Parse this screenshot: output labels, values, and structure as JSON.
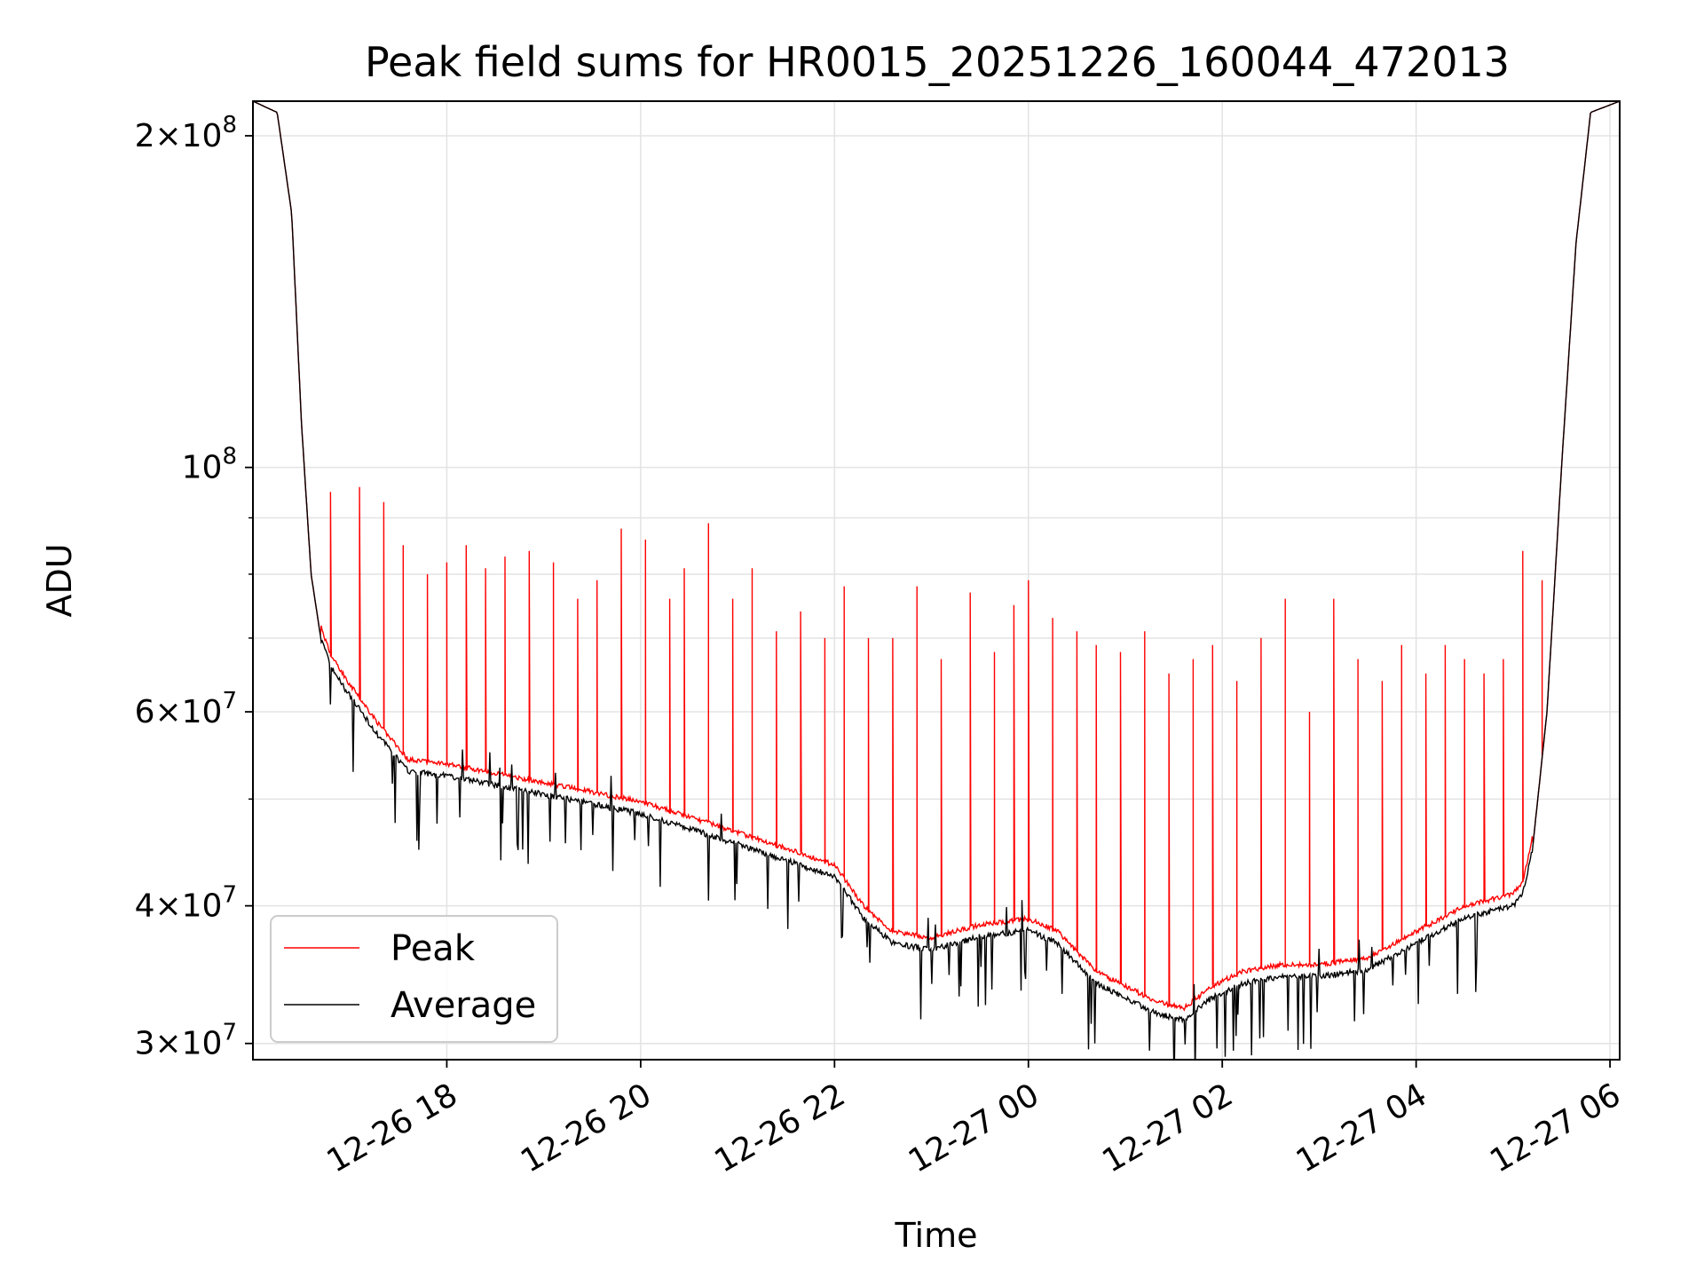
{
  "chart_data": {
    "type": "line",
    "title": "Peak field sums for HR0015_20251226_160044_472013",
    "xlabel": "Time",
    "ylabel": "ADU",
    "yscale": "log",
    "ylim": [
      29000000,
      215000000
    ],
    "xlim_hours": [
      16.0,
      30.1
    ],
    "x_ticks": [
      {
        "hour": 18,
        "label": "12-26 18"
      },
      {
        "hour": 20,
        "label": "12-26 20"
      },
      {
        "hour": 22,
        "label": "12-26 22"
      },
      {
        "hour": 24,
        "label": "12-27 00"
      },
      {
        "hour": 26,
        "label": "12-27 02"
      },
      {
        "hour": 28,
        "label": "12-27 04"
      },
      {
        "hour": 30,
        "label": "12-27 06"
      }
    ],
    "y_major_ticks": [
      {
        "value": 30000000,
        "mant": "3",
        "exp": "7"
      },
      {
        "value": 40000000,
        "mant": "4",
        "exp": "7"
      },
      {
        "value": 60000000,
        "mant": "6",
        "exp": "7"
      },
      {
        "value": 100000000,
        "mant": "",
        "exp": "8"
      },
      {
        "value": 200000000,
        "mant": "2",
        "exp": "8"
      }
    ],
    "y_minor_ticks": [
      50000000,
      70000000,
      80000000,
      90000000
    ],
    "grid": true,
    "legend": {
      "position": "lower-left",
      "entries": [
        {
          "name": "Peak",
          "color": "#ff0000"
        },
        {
          "name": "Average",
          "color": "#000000"
        }
      ]
    },
    "series": [
      {
        "name": "Average",
        "color": "#000000",
        "x_hours": [
          16.0,
          16.25,
          16.4,
          16.5,
          16.6,
          16.7,
          16.8,
          17.0,
          17.3,
          17.6,
          18.0,
          18.5,
          19.0,
          19.5,
          20.0,
          20.5,
          21.0,
          21.5,
          22.0,
          22.3,
          22.6,
          23.0,
          23.5,
          24.0,
          24.3,
          24.7,
          25.0,
          25.3,
          25.6,
          25.9,
          26.2,
          26.6,
          27.0,
          27.5,
          28.0,
          28.5,
          29.0,
          29.1,
          29.2,
          29.35,
          29.5,
          29.65,
          29.8,
          30.1
        ],
        "values": [
          215000000,
          210000000,
          170000000,
          110000000,
          80000000,
          70000000,
          66000000,
          62000000,
          57000000,
          53000000,
          52500000,
          51500000,
          50500000,
          49500000,
          48500000,
          47000000,
          45500000,
          44000000,
          42500000,
          39000000,
          37000000,
          36500000,
          37500000,
          38000000,
          37000000,
          34000000,
          33000000,
          32000000,
          31500000,
          33000000,
          34000000,
          34500000,
          34500000,
          35000000,
          37000000,
          39000000,
          40000000,
          41000000,
          45000000,
          60000000,
          100000000,
          160000000,
          210000000,
          215000000
        ]
      },
      {
        "name": "Peak",
        "color": "#ff0000",
        "spike_hours": [
          16.8,
          17.1,
          17.35,
          17.55,
          17.8,
          18.0,
          18.2,
          18.4,
          18.6,
          18.85,
          19.1,
          19.35,
          19.55,
          19.8,
          20.05,
          20.3,
          20.45,
          20.7,
          20.95,
          21.15,
          21.4,
          21.65,
          21.9,
          22.1,
          22.35,
          22.6,
          22.85,
          23.1,
          23.4,
          23.65,
          23.85,
          24.0,
          24.25,
          24.5,
          24.7,
          24.95,
          25.2,
          25.45,
          25.7,
          25.9,
          26.15,
          26.4,
          26.65,
          26.9,
          27.15,
          27.4,
          27.65,
          27.85,
          28.1,
          28.3,
          28.5,
          28.7,
          28.9,
          29.1,
          29.3
        ],
        "spike_values": [
          95000000,
          96000000,
          93000000,
          85000000,
          80000000,
          82000000,
          85000000,
          81000000,
          83000000,
          84000000,
          82000000,
          76000000,
          79000000,
          88000000,
          86000000,
          76000000,
          81000000,
          89000000,
          76000000,
          81000000,
          71000000,
          74000000,
          70000000,
          78000000,
          70000000,
          70000000,
          78000000,
          67000000,
          77000000,
          68000000,
          75000000,
          79000000,
          73000000,
          71000000,
          69000000,
          68000000,
          71000000,
          65000000,
          67000000,
          69000000,
          64000000,
          70000000,
          76000000,
          60000000,
          76000000,
          67000000,
          64000000,
          69000000,
          65000000,
          69000000,
          67000000,
          65000000,
          67000000,
          84000000,
          79000000
        ]
      }
    ]
  }
}
